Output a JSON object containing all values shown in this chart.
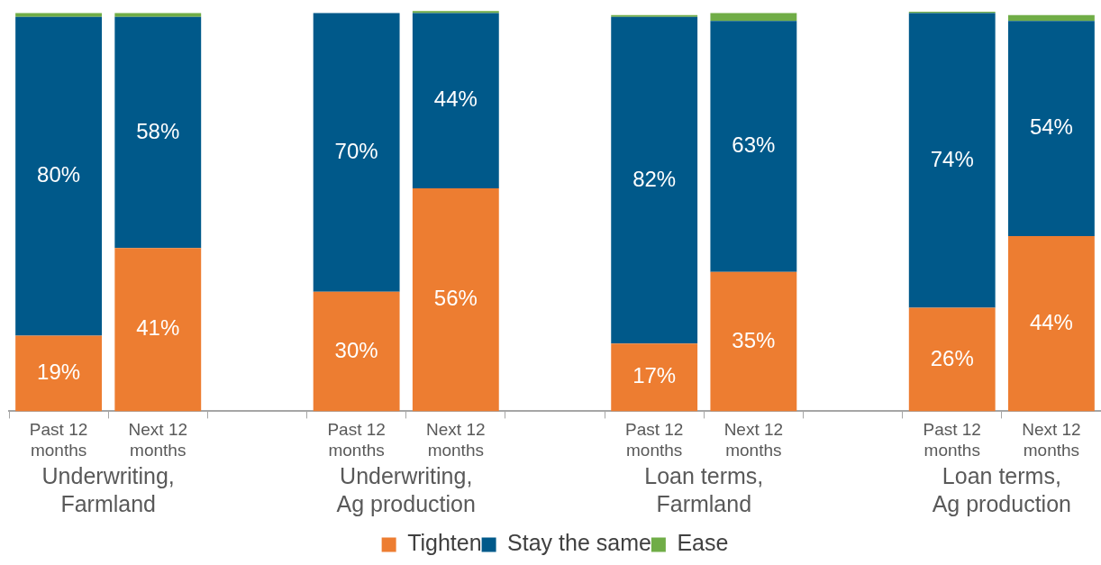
{
  "chart_data": {
    "type": "bar",
    "stacked": true,
    "categories": [
      "Past 12 months",
      "Next 12 months",
      null,
      "Past 12 months",
      "Next 12 months",
      null,
      "Past 12 months",
      "Next 12 months",
      null,
      "Past 12 months",
      "Next 12 months"
    ],
    "series": [
      {
        "name": "Tighten",
        "color": "#ed7d31",
        "values": [
          19,
          41,
          null,
          30,
          56,
          null,
          17,
          35,
          null,
          26,
          44
        ],
        "value_labels": [
          "19%",
          "41%",
          null,
          "30%",
          "56%",
          null,
          "17%",
          "35%",
          null,
          "26%",
          "44%"
        ]
      },
      {
        "name": "Stay the same",
        "color": "#00598a",
        "values": [
          80,
          58,
          null,
          70,
          44,
          null,
          82,
          63,
          null,
          74,
          54
        ],
        "value_labels": [
          "80%",
          "58%",
          null,
          "70%",
          "44%",
          null,
          "82%",
          "63%",
          null,
          "74%",
          "54%"
        ]
      },
      {
        "name": "Ease",
        "color": "#70ad47",
        "values": [
          1,
          1,
          null,
          0,
          0.5,
          null,
          0.5,
          2,
          null,
          0.3,
          1.5
        ]
      }
    ],
    "ylim": [
      0,
      101
    ],
    "tick_labels": "x",
    "grid": false,
    "legend": "bottom",
    "annotations": [
      "Underwriting, Farmland",
      "Underwriting, Ag production",
      "Loan terms, Farmland",
      "Loan terms, Ag production"
    ]
  }
}
